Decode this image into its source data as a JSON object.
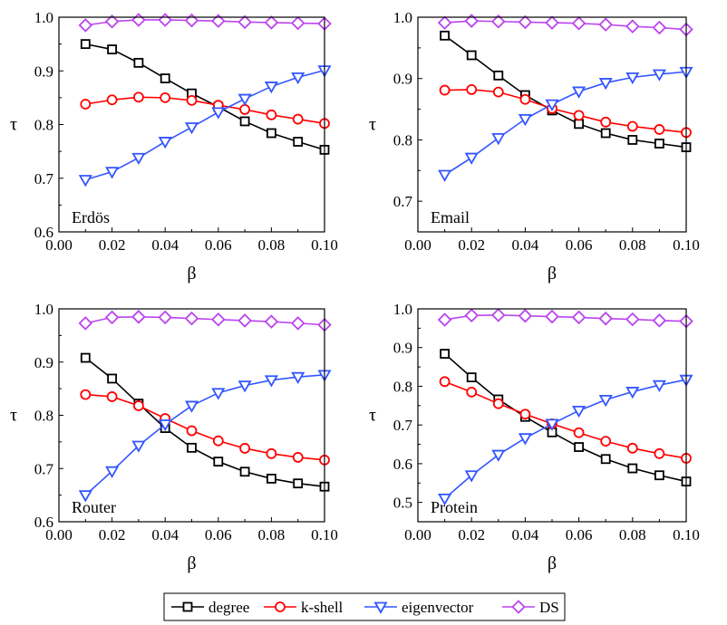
{
  "figure": {
    "x_symbol": "β",
    "y_symbol": "τ",
    "legend": [
      {
        "key": "degree",
        "label": "degree",
        "color": "#000000",
        "marker": "square"
      },
      {
        "key": "kshell",
        "label": "k-shell",
        "color": "#ff0000",
        "marker": "circle"
      },
      {
        "key": "eigen",
        "label": "eigenvector",
        "color": "#3355ff",
        "marker": "triangle-down"
      },
      {
        "key": "ds",
        "label": "DS",
        "color": "#bb44ee",
        "marker": "diamond"
      }
    ]
  },
  "chart_data": [
    {
      "type": "line",
      "panel_label": "Erdös",
      "xlabel": "β",
      "ylabel": "τ",
      "xlim": [
        0.0,
        0.1
      ],
      "ylim": [
        0.6,
        1.0
      ],
      "xticks": [
        "0.00",
        "0.02",
        "0.04",
        "0.06",
        "0.08",
        "0.10"
      ],
      "yticks": [
        "0.6",
        "0.7",
        "0.8",
        "0.9",
        "1.0"
      ],
      "x": [
        0.01,
        0.02,
        0.03,
        0.04,
        0.05,
        0.06,
        0.07,
        0.08,
        0.09,
        0.1
      ],
      "series": [
        {
          "name": "degree",
          "values": [
            0.95,
            0.94,
            0.915,
            0.886,
            0.858,
            0.833,
            0.806,
            0.784,
            0.768,
            0.753
          ]
        },
        {
          "name": "k-shell",
          "values": [
            0.838,
            0.846,
            0.851,
            0.85,
            0.845,
            0.836,
            0.828,
            0.818,
            0.81,
            0.802
          ]
        },
        {
          "name": "eigenvector",
          "values": [
            0.697,
            0.712,
            0.738,
            0.768,
            0.795,
            0.823,
            0.848,
            0.871,
            0.888,
            0.901
          ]
        },
        {
          "name": "DS",
          "values": [
            0.985,
            0.992,
            0.995,
            0.995,
            0.994,
            0.993,
            0.991,
            0.99,
            0.989,
            0.988
          ]
        }
      ]
    },
    {
      "type": "line",
      "panel_label": "Email",
      "xlabel": "β",
      "ylabel": "τ",
      "xlim": [
        0.0,
        0.1
      ],
      "ylim": [
        0.65,
        1.0
      ],
      "xticks": [
        "0.00",
        "0.02",
        "0.04",
        "0.06",
        "0.08",
        "0.10"
      ],
      "yticks": [
        "0.7",
        "0.8",
        "0.9",
        "1.0"
      ],
      "x": [
        0.01,
        0.02,
        0.03,
        0.04,
        0.05,
        0.06,
        0.07,
        0.08,
        0.09,
        0.1
      ],
      "series": [
        {
          "name": "degree",
          "values": [
            0.97,
            0.938,
            0.905,
            0.873,
            0.848,
            0.826,
            0.811,
            0.8,
            0.794,
            0.788
          ]
        },
        {
          "name": "k-shell",
          "values": [
            0.881,
            0.882,
            0.878,
            0.866,
            0.851,
            0.84,
            0.829,
            0.822,
            0.817,
            0.812
          ]
        },
        {
          "name": "eigenvector",
          "values": [
            0.743,
            0.771,
            0.803,
            0.834,
            0.858,
            0.879,
            0.893,
            0.902,
            0.907,
            0.911
          ]
        },
        {
          "name": "DS",
          "values": [
            0.991,
            0.994,
            0.993,
            0.992,
            0.991,
            0.99,
            0.988,
            0.985,
            0.983,
            0.98
          ]
        }
      ]
    },
    {
      "type": "line",
      "panel_label": "Router",
      "xlabel": "β",
      "ylabel": "τ",
      "xlim": [
        0.0,
        0.1
      ],
      "ylim": [
        0.6,
        1.0
      ],
      "xticks": [
        "0.00",
        "0.02",
        "0.04",
        "0.06",
        "0.08",
        "0.10"
      ],
      "yticks": [
        "0.6",
        "0.7",
        "0.8",
        "0.9",
        "1.0"
      ],
      "x": [
        0.01,
        0.02,
        0.03,
        0.04,
        0.05,
        0.06,
        0.07,
        0.08,
        0.09,
        0.1
      ],
      "series": [
        {
          "name": "degree",
          "values": [
            0.908,
            0.869,
            0.822,
            0.776,
            0.739,
            0.713,
            0.694,
            0.681,
            0.672,
            0.666
          ]
        },
        {
          "name": "k-shell",
          "values": [
            0.839,
            0.835,
            0.818,
            0.794,
            0.771,
            0.752,
            0.738,
            0.728,
            0.721,
            0.716
          ]
        },
        {
          "name": "eigenvector",
          "values": [
            0.65,
            0.695,
            0.743,
            0.783,
            0.818,
            0.842,
            0.856,
            0.866,
            0.872,
            0.876
          ]
        },
        {
          "name": "DS",
          "values": [
            0.973,
            0.984,
            0.985,
            0.984,
            0.982,
            0.98,
            0.978,
            0.976,
            0.973,
            0.97
          ]
        }
      ]
    },
    {
      "type": "line",
      "panel_label": "Protein",
      "xlabel": "β",
      "ylabel": "τ",
      "xlim": [
        0.0,
        0.1
      ],
      "ylim": [
        0.45,
        1.0
      ],
      "xticks": [
        "0.00",
        "0.02",
        "0.04",
        "0.06",
        "0.08",
        "0.10"
      ],
      "yticks": [
        "0.5",
        "0.6",
        "0.7",
        "0.8",
        "0.9",
        "1.0"
      ],
      "x": [
        0.01,
        0.02,
        0.03,
        0.04,
        0.05,
        0.06,
        0.07,
        0.08,
        0.09,
        0.1
      ],
      "series": [
        {
          "name": "degree",
          "values": [
            0.884,
            0.823,
            0.766,
            0.721,
            0.681,
            0.643,
            0.612,
            0.588,
            0.57,
            0.554
          ]
        },
        {
          "name": "k-shell",
          "values": [
            0.812,
            0.785,
            0.755,
            0.728,
            0.703,
            0.68,
            0.658,
            0.64,
            0.626,
            0.614
          ]
        },
        {
          "name": "eigenvector",
          "values": [
            0.51,
            0.57,
            0.623,
            0.666,
            0.703,
            0.737,
            0.765,
            0.786,
            0.803,
            0.817
          ]
        },
        {
          "name": "DS",
          "values": [
            0.972,
            0.983,
            0.984,
            0.982,
            0.98,
            0.978,
            0.975,
            0.973,
            0.97,
            0.968
          ]
        }
      ]
    }
  ]
}
